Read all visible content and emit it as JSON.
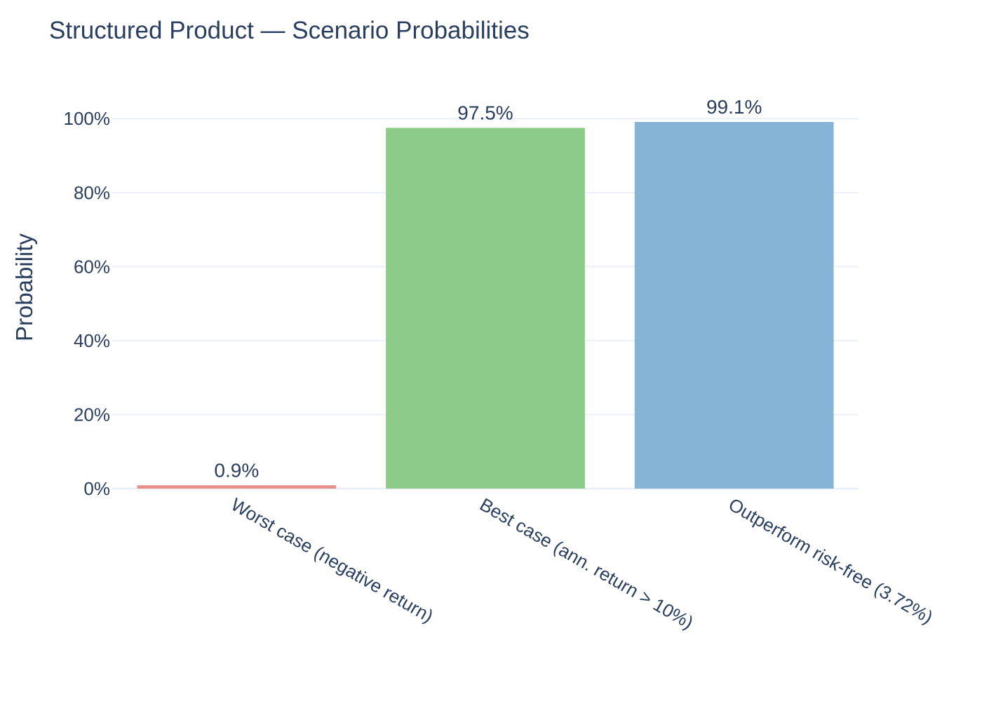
{
  "chart_data": {
    "type": "bar",
    "title": "Structured Product — Scenario Probabilities",
    "ylabel": "Probability",
    "xlabel": "",
    "categories": [
      "Worst case (negative return)",
      "Best case (ann. return > 10%)",
      "Outperform risk-free (3.72%)"
    ],
    "values": [
      0.009,
      0.975,
      0.991
    ],
    "data_labels": [
      "0.9%",
      "97.5%",
      "99.1%"
    ],
    "colors": [
      "#e88e8b",
      "#8ccb89",
      "#86b4d7"
    ],
    "ylim": [
      0,
      1.08
    ],
    "yticks": [
      0,
      0.2,
      0.4,
      0.6,
      0.8,
      1.0
    ],
    "ytick_labels": [
      "0%",
      "20%",
      "40%",
      "60%",
      "80%",
      "100%"
    ],
    "grid": true,
    "legend": "none"
  }
}
